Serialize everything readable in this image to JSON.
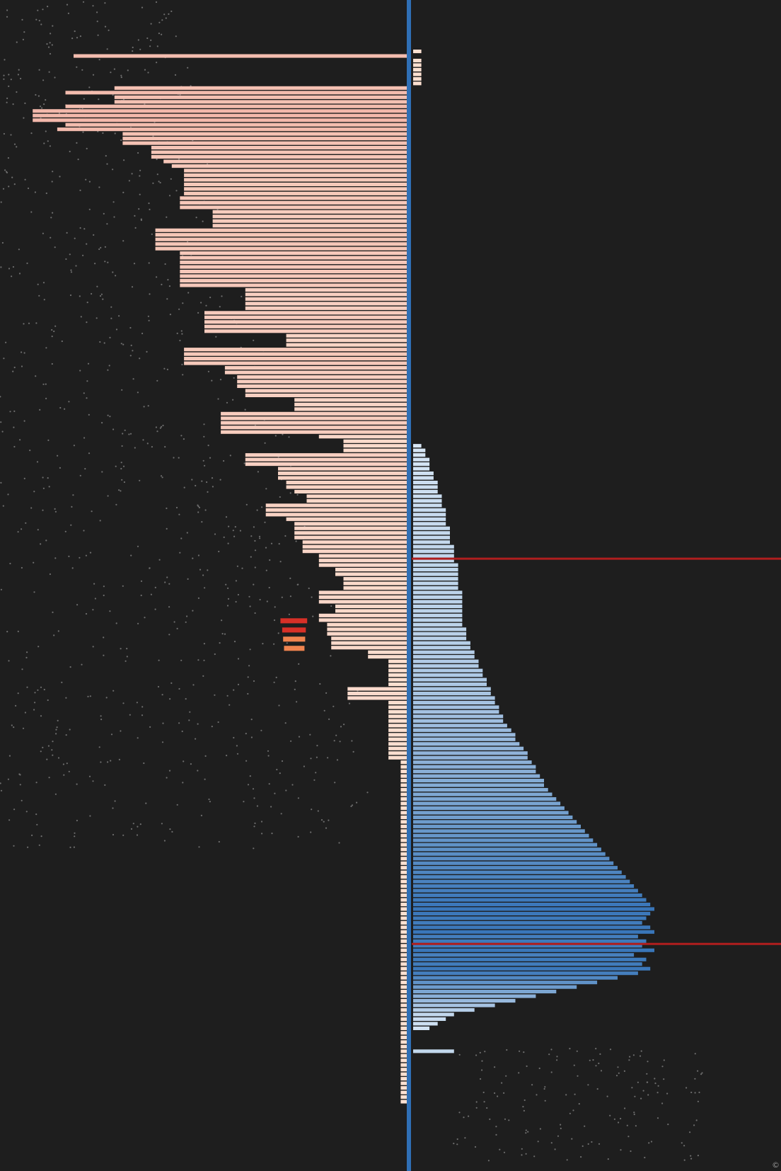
{
  "chart_data": {
    "type": "bar",
    "orientation": "horizontal-diverging",
    "title": "",
    "xlabel": "",
    "ylabel": "",
    "grid": false,
    "legend": "none",
    "xlim": [
      -1,
      1
    ],
    "bar_count": 230,
    "series": [
      {
        "name": "",
        "side": "left",
        "color_low": "#fbe1d2",
        "color_high": "#d73027",
        "values": [
          0.02,
          -0.82,
          0.02,
          0.02,
          0.02,
          0.02,
          0.02,
          0.02,
          -0.72,
          -0.84,
          -0.72,
          -0.72,
          -0.84,
          -0.92,
          -0.92,
          -0.92,
          -0.84,
          -0.86,
          -0.7,
          -0.7,
          -0.7,
          -0.63,
          -0.63,
          -0.63,
          -0.6,
          -0.58,
          -0.55,
          -0.55,
          -0.55,
          -0.55,
          -0.55,
          -0.55,
          -0.56,
          -0.56,
          -0.56,
          -0.48,
          -0.48,
          -0.48,
          -0.48,
          -0.62,
          -0.62,
          -0.62,
          -0.62,
          -0.62,
          -0.56,
          -0.56,
          -0.56,
          -0.56,
          -0.56,
          -0.56,
          -0.56,
          -0.56,
          -0.4,
          -0.4,
          -0.4,
          -0.4,
          -0.4,
          -0.5,
          -0.5,
          -0.5,
          -0.5,
          -0.5,
          -0.3,
          -0.3,
          -0.3,
          -0.55,
          -0.55,
          -0.55,
          -0.55,
          -0.45,
          -0.45,
          -0.42,
          -0.42,
          -0.42,
          -0.4,
          -0.4,
          -0.28,
          -0.28,
          -0.28,
          -0.46,
          -0.46,
          -0.46,
          -0.46,
          -0.46,
          -0.22,
          -0.16,
          -0.16,
          -0.16,
          -0.4,
          -0.4,
          -0.4,
          -0.32,
          -0.32,
          -0.32,
          -0.3,
          -0.3,
          -0.28,
          -0.25,
          -0.25,
          -0.35,
          -0.35,
          -0.35,
          -0.3,
          -0.28,
          -0.28,
          -0.28,
          -0.28,
          -0.26,
          -0.26,
          -0.26,
          -0.22,
          -0.22,
          -0.22,
          -0.18,
          -0.18,
          -0.16,
          -0.16,
          -0.16,
          -0.22,
          -0.22,
          -0.22,
          -0.18,
          -0.18,
          -0.22,
          -0.22,
          -0.2,
          -0.2,
          -0.2,
          -0.19,
          -0.19,
          -0.19,
          -0.1,
          -0.1,
          -0.05,
          -0.05,
          -0.05,
          -0.05,
          -0.05,
          -0.05,
          -0.15,
          -0.15,
          -0.15,
          -0.05,
          -0.05,
          -0.05,
          -0.05,
          -0.05,
          -0.05,
          -0.05,
          -0.05,
          -0.05,
          -0.05,
          -0.05,
          -0.05,
          -0.05,
          -0.02,
          -0.02,
          -0.02,
          -0.02,
          -0.02,
          -0.02,
          -0.02,
          -0.02,
          -0.02,
          -0.02,
          -0.02,
          -0.02,
          -0.02,
          -0.02,
          -0.02,
          -0.02,
          -0.02,
          -0.02,
          -0.02,
          -0.02,
          -0.02,
          -0.02,
          -0.02,
          -0.02,
          -0.02,
          -0.02,
          -0.02,
          -0.02,
          -0.02,
          -0.02,
          -0.02,
          -0.02,
          -0.02,
          -0.02,
          -0.02,
          -0.02,
          -0.02,
          -0.02,
          -0.02,
          -0.02,
          -0.02,
          -0.02,
          -0.02,
          -0.02,
          -0.02,
          -0.02,
          -0.02,
          -0.02,
          -0.02,
          -0.02,
          -0.02,
          -0.02,
          -0.02,
          -0.02,
          -0.02,
          -0.02,
          -0.02,
          -0.02,
          -0.02,
          -0.02,
          -0.02,
          -0.02,
          -0.02,
          -0.02,
          -0.02,
          -0.02,
          -0.02,
          -0.02,
          -0.02,
          -0.02,
          -0.02,
          -0.02,
          -0.02,
          -0.02,
          -0.02
        ]
      },
      {
        "name": "",
        "side": "right",
        "color_low": "#deebf7",
        "color_high": "#2f6fb5",
        "values": [
          0.0,
          0.0,
          0.0,
          0.0,
          0.0,
          0.0,
          0.0,
          0.0,
          0.0,
          0.0,
          0.0,
          0.0,
          0.0,
          0.0,
          0.0,
          0.0,
          0.0,
          0.0,
          0.0,
          0.0,
          0.0,
          0.0,
          0.0,
          0.0,
          0.0,
          0.0,
          0.0,
          0.0,
          0.0,
          0.0,
          0.0,
          0.0,
          0.0,
          0.0,
          0.0,
          0.0,
          0.0,
          0.0,
          0.0,
          0.0,
          0.0,
          0.0,
          0.0,
          0.0,
          0.0,
          0.0,
          0.0,
          0.0,
          0.0,
          0.0,
          0.0,
          0.0,
          0.0,
          0.0,
          0.0,
          0.0,
          0.0,
          0.0,
          0.0,
          0.0,
          0.0,
          0.0,
          0.0,
          0.0,
          0.0,
          0.0,
          0.0,
          0.0,
          0.0,
          0.0,
          0.0,
          0.0,
          0.0,
          0.0,
          0.0,
          0.0,
          0.0,
          0.0,
          0.0,
          0.0,
          0.0,
          0.0,
          0.0,
          0.0,
          0.0,
          0.0,
          0.02,
          0.03,
          0.03,
          0.04,
          0.04,
          0.04,
          0.05,
          0.05,
          0.06,
          0.06,
          0.06,
          0.07,
          0.07,
          0.07,
          0.08,
          0.08,
          0.08,
          0.08,
          0.09,
          0.09,
          0.09,
          0.09,
          0.1,
          0.1,
          0.1,
          0.1,
          0.11,
          0.11,
          0.11,
          0.11,
          0.11,
          0.11,
          0.12,
          0.12,
          0.12,
          0.12,
          0.12,
          0.12,
          0.12,
          0.12,
          0.13,
          0.13,
          0.13,
          0.14,
          0.14,
          0.15,
          0.15,
          0.16,
          0.16,
          0.17,
          0.17,
          0.18,
          0.18,
          0.19,
          0.19,
          0.2,
          0.2,
          0.21,
          0.21,
          0.22,
          0.22,
          0.23,
          0.24,
          0.25,
          0.25,
          0.26,
          0.27,
          0.28,
          0.28,
          0.29,
          0.3,
          0.3,
          0.31,
          0.32,
          0.32,
          0.33,
          0.34,
          0.35,
          0.36,
          0.37,
          0.38,
          0.39,
          0.4,
          0.41,
          0.42,
          0.43,
          0.44,
          0.45,
          0.46,
          0.47,
          0.48,
          0.49,
          0.5,
          0.51,
          0.52,
          0.53,
          0.54,
          0.55,
          0.56,
          0.57,
          0.58,
          0.59,
          0.58,
          0.57,
          0.56,
          0.58,
          0.59,
          0.55,
          0.57,
          0.56,
          0.59,
          0.54,
          0.57,
          0.56,
          0.58,
          0.55,
          0.5,
          0.45,
          0.4,
          0.35,
          0.3,
          0.25,
          0.2,
          0.15,
          0.1,
          0.08,
          0.06,
          0.04,
          0.0,
          0.0,
          0.0,
          0.0,
          0.1,
          0.0,
          0.0,
          0.0,
          0.0,
          0.0,
          0.0,
          0.0,
          0.0,
          0.0,
          0.0,
          0.0
        ]
      }
    ],
    "highlight_values": [
      0.0,
      -0.34,
      -0.3,
      -0.28,
      -0.26
    ],
    "reference_lines": [
      {
        "orientation": "vertical",
        "x": 0,
        "color": "#2f6fb5"
      },
      {
        "orientation": "horizontal",
        "at_bar": 111,
        "color": "#b01e1e"
      },
      {
        "orientation": "horizontal",
        "at_bar": 195,
        "color": "#b01e1e"
      }
    ],
    "corner_label": "©"
  }
}
